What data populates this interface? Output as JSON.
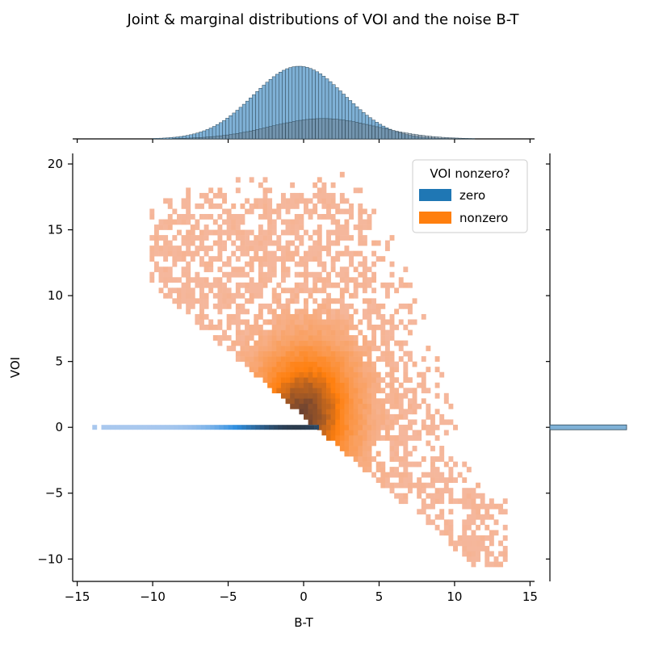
{
  "title": "Joint & marginal distributions of VOI and the noise B-T",
  "chart_data": {
    "type": "heatmap",
    "xlabel": "B-T",
    "ylabel": "VOI",
    "xlim": [
      -15.3,
      15.3
    ],
    "ylim": [
      -11.7,
      20.8
    ],
    "xticks": [
      -15,
      -10,
      -5,
      0,
      5,
      10,
      15
    ],
    "yticks": [
      -10,
      -5,
      0,
      5,
      10,
      15,
      20
    ],
    "xtick_labels": [
      "−15",
      "−10",
      "−5",
      "0",
      "5",
      "10",
      "15"
    ],
    "ytick_labels": [
      "−10",
      "−5",
      "0",
      "5",
      "10",
      "15",
      "20"
    ],
    "legend": {
      "title": "VOI nonzero?",
      "entries": [
        {
          "label": "zero",
          "color": "#1f77b4"
        },
        {
          "label": "nonzero",
          "color": "#ff7f0e"
        }
      ],
      "placement": "top-right"
    },
    "series": [
      {
        "name": "zero",
        "color": "#1f77b4",
        "description_of_support": "VOI = 0 exactly; B-T ranges about -14 to 1",
        "x_range": [
          -14,
          1
        ],
        "y_value": 0
      },
      {
        "name": "nonzero",
        "color": "#ff7f0e",
        "lower_boundary_line": {
          "x": [
            -10,
            1,
            11
          ],
          "y": [
            11,
            0,
            -10
          ]
        },
        "x_range": [
          -10.5,
          13.5
        ],
        "y_range": [
          -10.5,
          19.5
        ],
        "density_peak": {
          "x": 0.5,
          "y": 2
        }
      }
    ],
    "marginal_x": {
      "zero": {
        "mean": -0.3,
        "sd": 3.0,
        "peak_count_relative": 1.0
      },
      "nonzero": {
        "mean": 1.3,
        "sd": 3.5,
        "peak_count_relative": 0.28
      }
    },
    "marginal_y": {
      "zero_bar_at": 0
    },
    "grid": false
  },
  "colors": {
    "zero": "#1f77b4",
    "nonzero": "#ff7f0e",
    "marginal_fill": "#7fb1d6",
    "background": "#ffffff"
  }
}
